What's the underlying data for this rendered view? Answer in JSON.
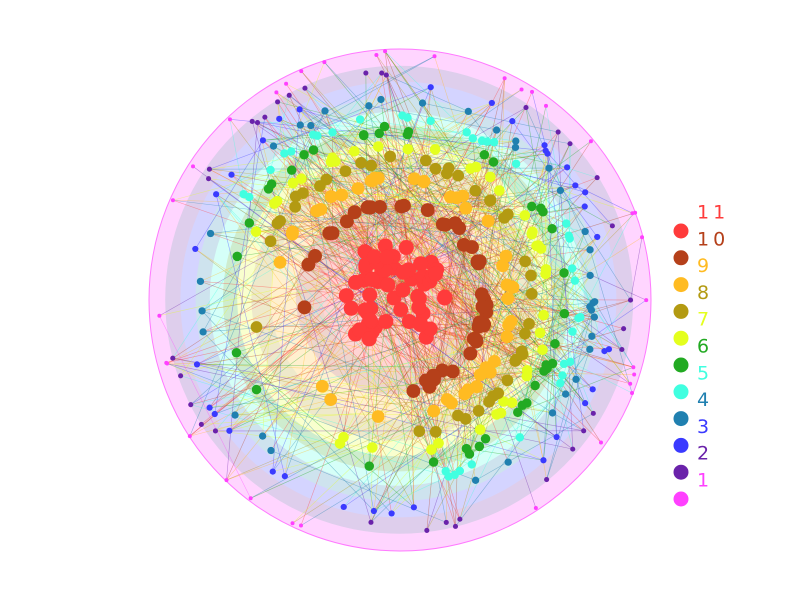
{
  "legend": {
    "items": [
      {
        "label": "11",
        "color": "#ff3b3b"
      },
      {
        "label": "10",
        "color": "#b5401a"
      },
      {
        "label": "9",
        "color": "#ffbb22"
      },
      {
        "label": "8",
        "color": "#b39a12"
      },
      {
        "label": "7",
        "color": "#e4ff1e"
      },
      {
        "label": "6",
        "color": "#22aa22"
      },
      {
        "label": "5",
        "color": "#40ffe0"
      },
      {
        "label": "4",
        "color": "#2080b0"
      },
      {
        "label": "3",
        "color": "#3a3aff"
      },
      {
        "label": "2",
        "color": "#6a22aa"
      },
      {
        "label": "1",
        "color": "#ff40ff"
      }
    ]
  }
}
